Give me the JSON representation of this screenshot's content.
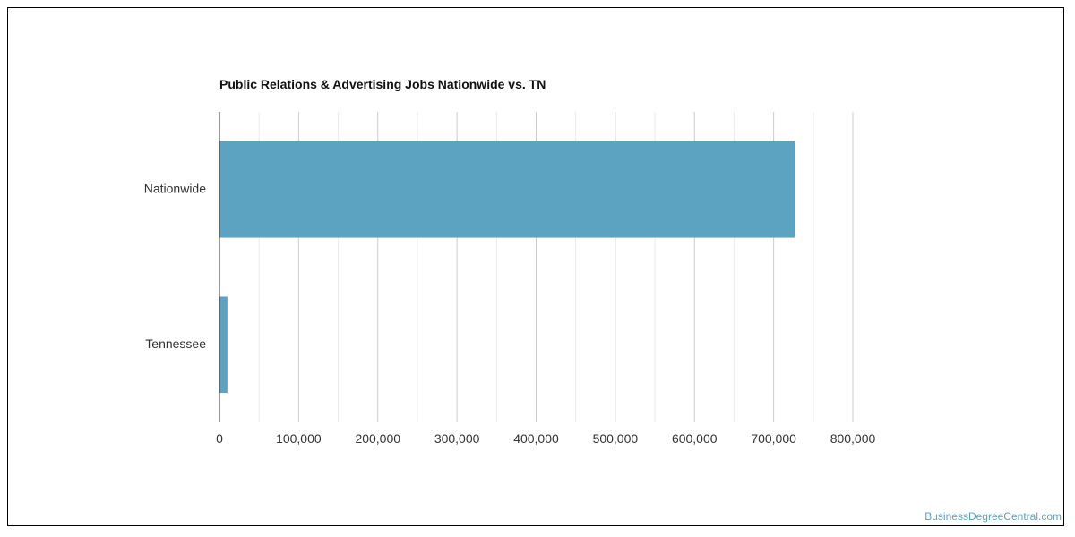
{
  "chart_data": {
    "type": "bar",
    "orientation": "horizontal",
    "title": "Public Relations & Advertising Jobs Nationwide vs. TN",
    "categories": [
      "Nationwide",
      "Tennessee"
    ],
    "values": [
      727000,
      10000
    ],
    "xlim": [
      0,
      800000
    ],
    "xticks": [
      0,
      100000,
      200000,
      300000,
      400000,
      500000,
      600000,
      700000,
      800000
    ],
    "xtick_labels": [
      "0",
      "100,000",
      "200,000",
      "300,000",
      "400,000",
      "500,000",
      "600,000",
      "700,000",
      "800,000"
    ],
    "xlabel": "",
    "ylabel": "",
    "grid": true,
    "bar_color": "#5ba3c0",
    "legend": "none"
  },
  "watermark": "BusinessDegreeCentral.com"
}
